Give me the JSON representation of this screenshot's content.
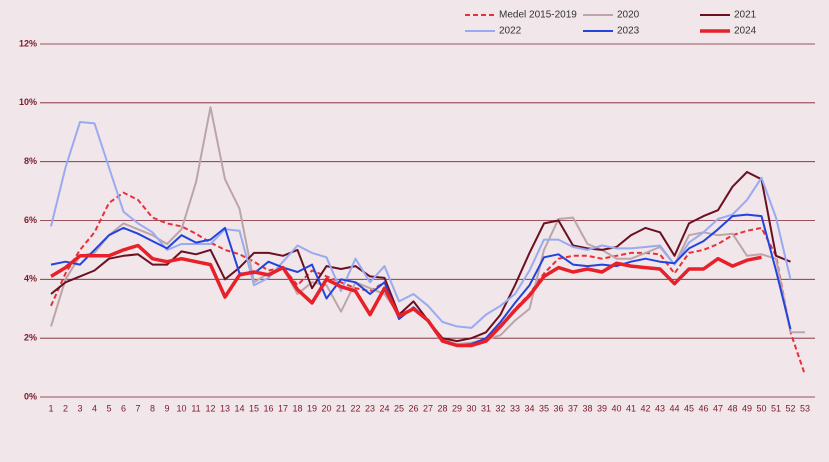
{
  "chart_data": {
    "type": "line",
    "categories": [
      1,
      2,
      3,
      4,
      5,
      6,
      7,
      8,
      9,
      10,
      11,
      12,
      13,
      14,
      15,
      16,
      17,
      18,
      19,
      20,
      21,
      22,
      23,
      24,
      25,
      26,
      27,
      28,
      29,
      30,
      31,
      32,
      33,
      34,
      35,
      36,
      37,
      38,
      39,
      40,
      41,
      42,
      43,
      44,
      45,
      46,
      47,
      48,
      49,
      50,
      51,
      52,
      53
    ],
    "ylim": [
      0,
      12
    ],
    "yticks": [
      {
        "value": 0,
        "label": "0%"
      },
      {
        "value": 2,
        "label": "2%"
      },
      {
        "value": 4,
        "label": "4%"
      },
      {
        "value": 6,
        "label": "6%"
      },
      {
        "value": 8,
        "label": "8%"
      },
      {
        "value": 10,
        "label": "10%"
      },
      {
        "value": 12,
        "label": "12%"
      }
    ],
    "grid": true,
    "legend": "top",
    "series": [
      {
        "name": "Medel 2015-2019",
        "color": "#e8303a",
        "dashed": true,
        "line_width": 2,
        "values": [
          3.1,
          4.2,
          5.0,
          5.6,
          6.6,
          6.95,
          6.7,
          6.1,
          5.9,
          5.8,
          5.55,
          5.25,
          5.0,
          4.85,
          4.6,
          4.3,
          4.4,
          3.8,
          4.3,
          4.1,
          3.9,
          3.7,
          3.6,
          3.9,
          2.8,
          3.0,
          2.6,
          1.95,
          1.75,
          1.8,
          2.0,
          2.4,
          3.0,
          3.5,
          4.2,
          4.7,
          4.8,
          4.8,
          4.7,
          4.8,
          4.9,
          4.9,
          4.85,
          4.2,
          4.9,
          5.0,
          5.2,
          5.5,
          5.65,
          5.75,
          4.8,
          2.2,
          0.75
        ]
      },
      {
        "name": "2020",
        "color": "#bca5a9",
        "line_width": 2,
        "values": [
          2.4,
          4.0,
          4.8,
          4.9,
          5.5,
          5.9,
          5.7,
          5.5,
          5.2,
          5.7,
          7.3,
          9.85,
          7.4,
          6.4,
          3.9,
          4.2,
          4.4,
          3.5,
          3.9,
          3.8,
          2.9,
          3.9,
          3.7,
          3.5,
          2.8,
          3.0,
          2.6,
          1.95,
          1.8,
          1.85,
          1.95,
          2.1,
          2.6,
          3.0,
          5.0,
          6.05,
          6.1,
          5.2,
          5.0,
          4.7,
          4.7,
          4.9,
          5.1,
          4.5,
          5.5,
          5.6,
          5.5,
          5.55,
          4.8,
          4.85,
          4.7,
          2.2,
          2.2
        ]
      },
      {
        "name": "2021",
        "color": "#6b1020",
        "line_width": 2,
        "values": [
          3.5,
          3.9,
          4.1,
          4.3,
          4.7,
          4.8,
          4.85,
          4.5,
          4.5,
          4.95,
          4.85,
          5.0,
          4.0,
          4.4,
          4.9,
          4.9,
          4.8,
          5.0,
          3.7,
          4.45,
          4.35,
          4.45,
          4.1,
          4.05,
          2.8,
          3.25,
          2.6,
          2.0,
          1.9,
          2.0,
          2.2,
          2.8,
          3.8,
          4.9,
          5.9,
          6.0,
          5.15,
          5.05,
          5.0,
          5.1,
          5.5,
          5.75,
          5.6,
          4.8,
          5.9,
          6.15,
          6.35,
          7.15,
          7.65,
          7.4,
          4.8,
          4.6,
          null
        ]
      },
      {
        "name": "2022",
        "color": "#9aaaf0",
        "line_width": 2,
        "values": [
          5.8,
          7.8,
          9.35,
          9.3,
          7.8,
          6.3,
          5.9,
          5.6,
          5.0,
          5.2,
          5.2,
          5.2,
          5.7,
          5.65,
          3.8,
          4.05,
          4.6,
          5.15,
          4.9,
          4.75,
          3.6,
          4.7,
          3.9,
          4.45,
          3.25,
          3.5,
          3.1,
          2.55,
          2.4,
          2.35,
          2.8,
          3.1,
          3.5,
          4.3,
          5.35,
          5.35,
          5.1,
          5.0,
          5.15,
          5.05,
          5.05,
          5.1,
          5.15,
          4.5,
          5.25,
          5.6,
          6.05,
          6.2,
          6.7,
          7.45,
          6.1,
          4.0,
          null
        ]
      },
      {
        "name": "2023",
        "color": "#2244dd",
        "line_width": 2,
        "values": [
          4.5,
          4.6,
          4.5,
          5.0,
          5.5,
          5.75,
          5.55,
          5.3,
          5.05,
          5.5,
          5.25,
          5.35,
          5.75,
          4.2,
          4.2,
          4.6,
          4.4,
          4.25,
          4.5,
          3.35,
          4.0,
          3.9,
          3.5,
          3.9,
          2.65,
          3.05,
          2.6,
          1.9,
          1.75,
          1.8,
          2.0,
          2.55,
          3.2,
          3.8,
          4.75,
          4.85,
          4.5,
          4.45,
          4.5,
          4.45,
          4.6,
          4.7,
          4.6,
          4.55,
          5.05,
          5.3,
          5.7,
          6.15,
          6.2,
          6.15,
          4.3,
          2.3,
          null
        ]
      },
      {
        "name": "2024",
        "color": "#e8202a",
        "line_width": 3.5,
        "values": [
          4.1,
          4.4,
          4.8,
          4.8,
          4.8,
          5.0,
          5.15,
          4.7,
          4.6,
          4.7,
          4.6,
          4.5,
          3.4,
          4.15,
          4.25,
          4.15,
          4.4,
          3.65,
          3.2,
          4.0,
          3.75,
          3.6,
          2.8,
          3.7,
          2.75,
          3.0,
          2.6,
          1.9,
          1.75,
          1.75,
          1.9,
          2.4,
          2.95,
          3.45,
          4.1,
          4.4,
          4.25,
          4.35,
          4.25,
          4.55,
          4.45,
          4.4,
          4.35,
          3.85,
          4.35,
          4.35,
          4.7,
          4.45,
          4.65,
          4.75,
          null,
          null,
          null
        ]
      }
    ]
  }
}
